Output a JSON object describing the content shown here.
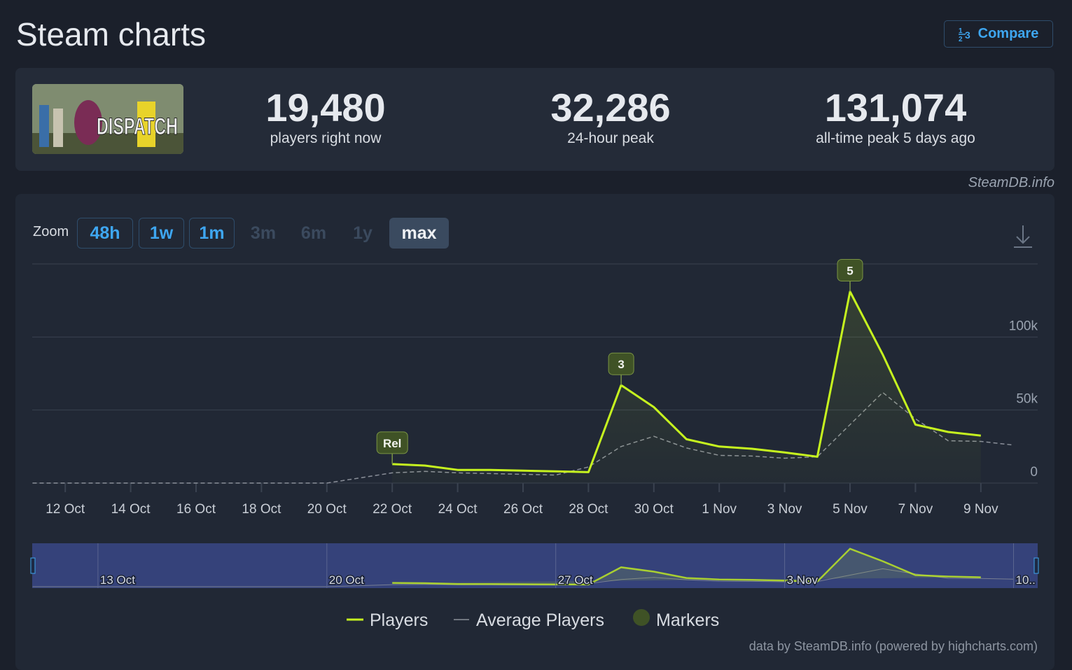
{
  "header": {
    "title": "Steam charts",
    "compare": "Compare"
  },
  "game": {
    "logo": "DISPATCH"
  },
  "stats": [
    {
      "value": "19,480",
      "label": "players right now"
    },
    {
      "value": "32,286",
      "label": "24-hour peak"
    },
    {
      "value": "131,074",
      "label": "all-time peak 5 days ago"
    }
  ],
  "source": "SteamDB.info",
  "zoom": {
    "label": "Zoom",
    "options": [
      "48h",
      "1w",
      "1m",
      "3m",
      "6m",
      "1y",
      "max"
    ]
  },
  "chart_data": {
    "type": "line",
    "categories": [
      null,
      "12 Oct",
      null,
      "14 Oct",
      null,
      "16 Oct",
      null,
      "18 Oct",
      null,
      "20 Oct",
      null,
      "22 Oct",
      null,
      "24 Oct",
      null,
      "26 Oct",
      null,
      "28 Oct",
      null,
      "30 Oct",
      null,
      "1 Nov",
      null,
      "3 Nov",
      null,
      "5 Nov",
      null,
      "7 Nov",
      null,
      "9 Nov",
      null
    ],
    "series": [
      {
        "name": "Players",
        "color": "#c6f31f",
        "values": [
          null,
          null,
          null,
          null,
          null,
          null,
          null,
          null,
          null,
          null,
          null,
          13000,
          12000,
          9000,
          9000,
          8500,
          8000,
          7500,
          67000,
          52000,
          30000,
          25000,
          23500,
          21000,
          18000,
          131074,
          88000,
          40000,
          35000,
          32500,
          null
        ]
      },
      {
        "name": "Average Players",
        "color": "#8a8f99",
        "values": [
          0,
          0,
          0,
          0,
          0,
          0,
          0,
          0,
          0,
          0,
          3500,
          7000,
          8000,
          7000,
          6500,
          6000,
          5500,
          11000,
          25000,
          32000,
          24000,
          19000,
          18500,
          17000,
          18000,
          40000,
          62000,
          44000,
          29000,
          28500,
          26000
        ]
      }
    ],
    "markers": [
      {
        "label": "Rel",
        "at": 11
      },
      {
        "label": "3",
        "at": 18
      },
      {
        "label": "5",
        "at": 25
      }
    ],
    "markers_legend": "Markers",
    "marker_color": "#3f5226",
    "ylim": [
      0,
      150000
    ],
    "yticks": [
      0,
      {
        "value": 50000,
        "label": "50k"
      },
      {
        "value": 100000,
        "label": "100k"
      }
    ],
    "grid": true
  },
  "navigator": {
    "labels": [
      "13 Oct",
      "20 Oct",
      "27 Oct",
      "3 Nov",
      "10.."
    ]
  },
  "credits": "data by SteamDB.info (powered by highcharts.com)"
}
